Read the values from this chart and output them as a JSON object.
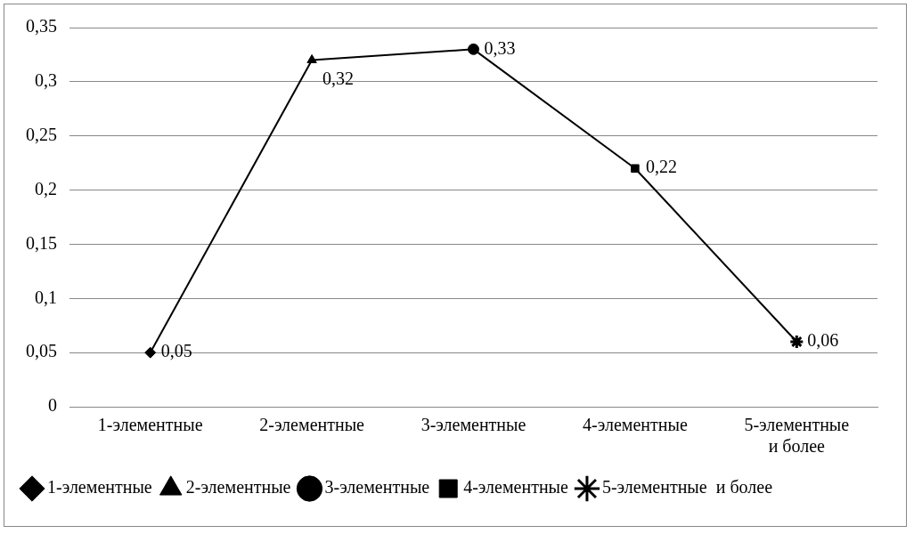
{
  "chart_data": {
    "type": "line",
    "categories": [
      "1-элементные",
      "2-элементные",
      "3-элементные",
      "4-элементные",
      "5-элементные и более"
    ],
    "series": [
      {
        "type": "line",
        "color": "#000000",
        "values": [
          0.05,
          0.32,
          0.33,
          0.22,
          0.06
        ],
        "marker": "none"
      },
      {
        "type": "scatter",
        "name": "1-элементные",
        "color": "#000000",
        "x": [
          "1-элементные"
        ],
        "values": [
          0.05
        ],
        "marker": "diamond",
        "value_labels": [
          "0,05"
        ]
      },
      {
        "type": "scatter",
        "name": "2-элементные",
        "color": "#000000",
        "x": [
          "2-элементные"
        ],
        "values": [
          0.32
        ],
        "marker": "triangle",
        "value_labels": [
          "0,32"
        ]
      },
      {
        "type": "scatter",
        "name": "3-элементные",
        "color": "#000000",
        "x": [
          "3-элементные"
        ],
        "values": [
          0.33
        ],
        "marker": "circle",
        "value_labels": [
          "0,33"
        ]
      },
      {
        "type": "scatter",
        "name": "4-элементные",
        "color": "#000000",
        "x": [
          "4-элементные"
        ],
        "values": [
          0.22
        ],
        "marker": "square",
        "value_labels": [
          "0,22"
        ]
      },
      {
        "type": "scatter",
        "name": "5-элементные  и более",
        "color": "#000000",
        "x": [
          "5-элементные и более"
        ],
        "values": [
          0.06
        ],
        "marker": "cross",
        "value_labels": [
          "0,06"
        ]
      }
    ],
    "ylim": [
      0,
      0.35
    ],
    "yticks": [
      {
        "value": 0,
        "label": "0"
      },
      {
        "value": 0.05,
        "label": "0,05"
      },
      {
        "value": 0.1,
        "label": "0,1"
      },
      {
        "value": 0.15,
        "label": "0,15"
      },
      {
        "value": 0.2,
        "label": "0,2"
      },
      {
        "value": 0.25,
        "label": "0,25"
      },
      {
        "value": 0.3,
        "label": "0,3"
      },
      {
        "value": 0.35,
        "label": "0,35"
      }
    ],
    "grid": "y",
    "legend": "bottom"
  }
}
